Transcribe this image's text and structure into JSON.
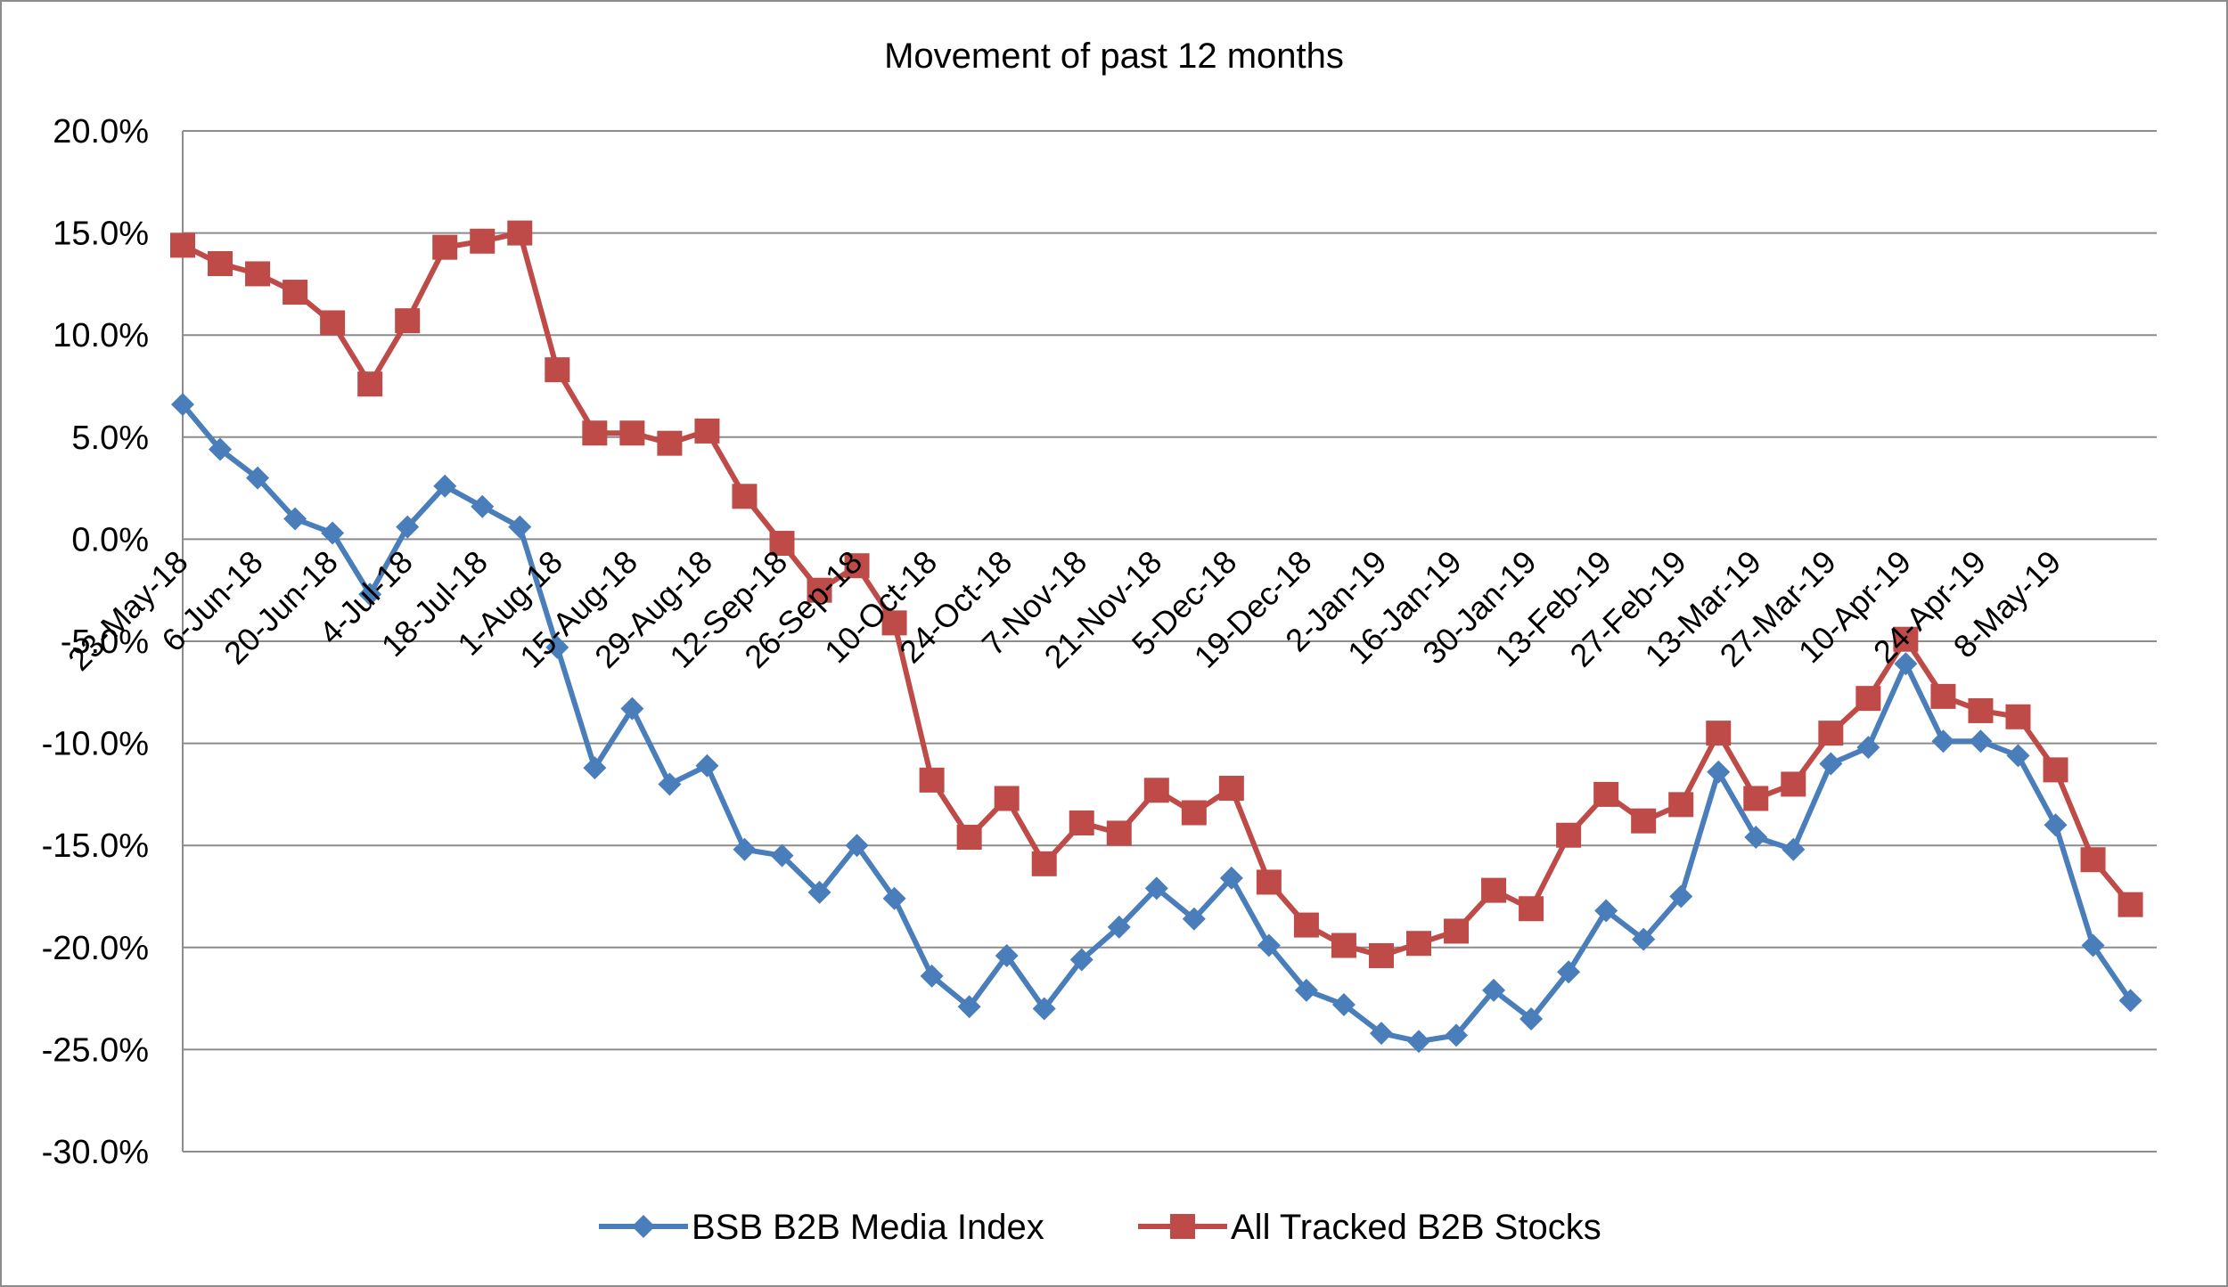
{
  "chart_data": {
    "type": "line",
    "title": "Movement of past 12 months",
    "xlabel": "",
    "ylabel": "",
    "ylim": [
      -30,
      20
    ],
    "ytick_step": 5,
    "y_format": "percent_1dp",
    "grid": true,
    "legend_position": "bottom",
    "x": [
      "23-May-18",
      "30-May-18",
      "6-Jun-18",
      "13-Jun-18",
      "20-Jun-18",
      "27-Jun-18",
      "4-Jul-18",
      "11-Jul-18",
      "18-Jul-18",
      "25-Jul-18",
      "1-Aug-18",
      "8-Aug-18",
      "15-Aug-18",
      "22-Aug-18",
      "29-Aug-18",
      "5-Sep-18",
      "12-Sep-18",
      "19-Sep-18",
      "26-Sep-18",
      "3-Oct-18",
      "10-Oct-18",
      "17-Oct-18",
      "24-Oct-18",
      "31-Oct-18",
      "7-Nov-18",
      "14-Nov-18",
      "21-Nov-18",
      "28-Nov-18",
      "5-Dec-18",
      "12-Dec-18",
      "19-Dec-18",
      "26-Dec-18",
      "2-Jan-19",
      "9-Jan-19",
      "16-Jan-19",
      "23-Jan-19",
      "30-Jan-19",
      "6-Feb-19",
      "13-Feb-19",
      "20-Feb-19",
      "27-Feb-19",
      "6-Mar-19",
      "13-Mar-19",
      "20-Mar-19",
      "27-Mar-19",
      "3-Apr-19",
      "10-Apr-19",
      "17-Apr-19",
      "24-Apr-19",
      "1-May-19",
      "8-May-19",
      "15-May-19",
      "22-May-19"
    ],
    "tick_labels": [
      "23-May-18",
      "6-Jun-18",
      "20-Jun-18",
      "4-Jul-18",
      "18-Jul-18",
      "1-Aug-18",
      "15-Aug-18",
      "29-Aug-18",
      "12-Sep-18",
      "26-Sep-18",
      "10-Oct-18",
      "24-Oct-18",
      "7-Nov-18",
      "21-Nov-18",
      "5-Dec-18",
      "19-Dec-18",
      "2-Jan-19",
      "16-Jan-19",
      "30-Jan-19",
      "13-Feb-19",
      "27-Feb-19",
      "13-Mar-19",
      "27-Mar-19",
      "10-Apr-19",
      "24-Apr-19",
      "8-May-19"
    ],
    "series": [
      {
        "name": "BSB B2B Media Index",
        "color": "#4a7ebb",
        "marker": "diamond",
        "values": [
          6.6,
          4.4,
          3.0,
          1.0,
          0.3,
          -2.7,
          0.6,
          2.6,
          1.6,
          0.6,
          -5.3,
          -11.2,
          -8.3,
          -12.0,
          -11.1,
          -15.2,
          -15.5,
          -17.3,
          -15.0,
          -17.6,
          -21.4,
          -22.9,
          -20.4,
          -23.0,
          -20.6,
          -19.0,
          -17.1,
          -18.6,
          -16.6,
          -19.9,
          -22.1,
          -22.8,
          -24.2,
          -24.6,
          -24.3,
          -22.1,
          -23.5,
          -21.2,
          -18.2,
          -19.6,
          -17.5,
          -11.4,
          -14.6,
          -15.2,
          -11.0,
          -10.2,
          -6.1,
          -9.9,
          -9.9,
          -10.6,
          -14.0,
          -19.9,
          -22.6
        ]
      },
      {
        "name": "All Tracked B2B Stocks",
        "color": "#be4b48",
        "marker": "square",
        "values": [
          14.4,
          13.5,
          13.0,
          12.1,
          10.6,
          7.6,
          10.7,
          14.3,
          14.6,
          15.0,
          8.3,
          5.2,
          5.2,
          4.7,
          5.3,
          2.1,
          -0.2,
          -2.5,
          -1.3,
          -4.1,
          -11.8,
          -14.6,
          -12.7,
          -15.9,
          -13.9,
          -14.4,
          -12.3,
          -13.4,
          -12.2,
          -16.8,
          -18.9,
          -19.9,
          -20.4,
          -19.8,
          -19.2,
          -17.2,
          -18.1,
          -14.5,
          -12.5,
          -13.8,
          -13.0,
          -9.5,
          -12.7,
          -12.0,
          -9.5,
          -7.8,
          -4.9,
          -7.7,
          -8.4,
          -8.7,
          -11.3,
          -15.7,
          -17.9
        ]
      }
    ]
  }
}
